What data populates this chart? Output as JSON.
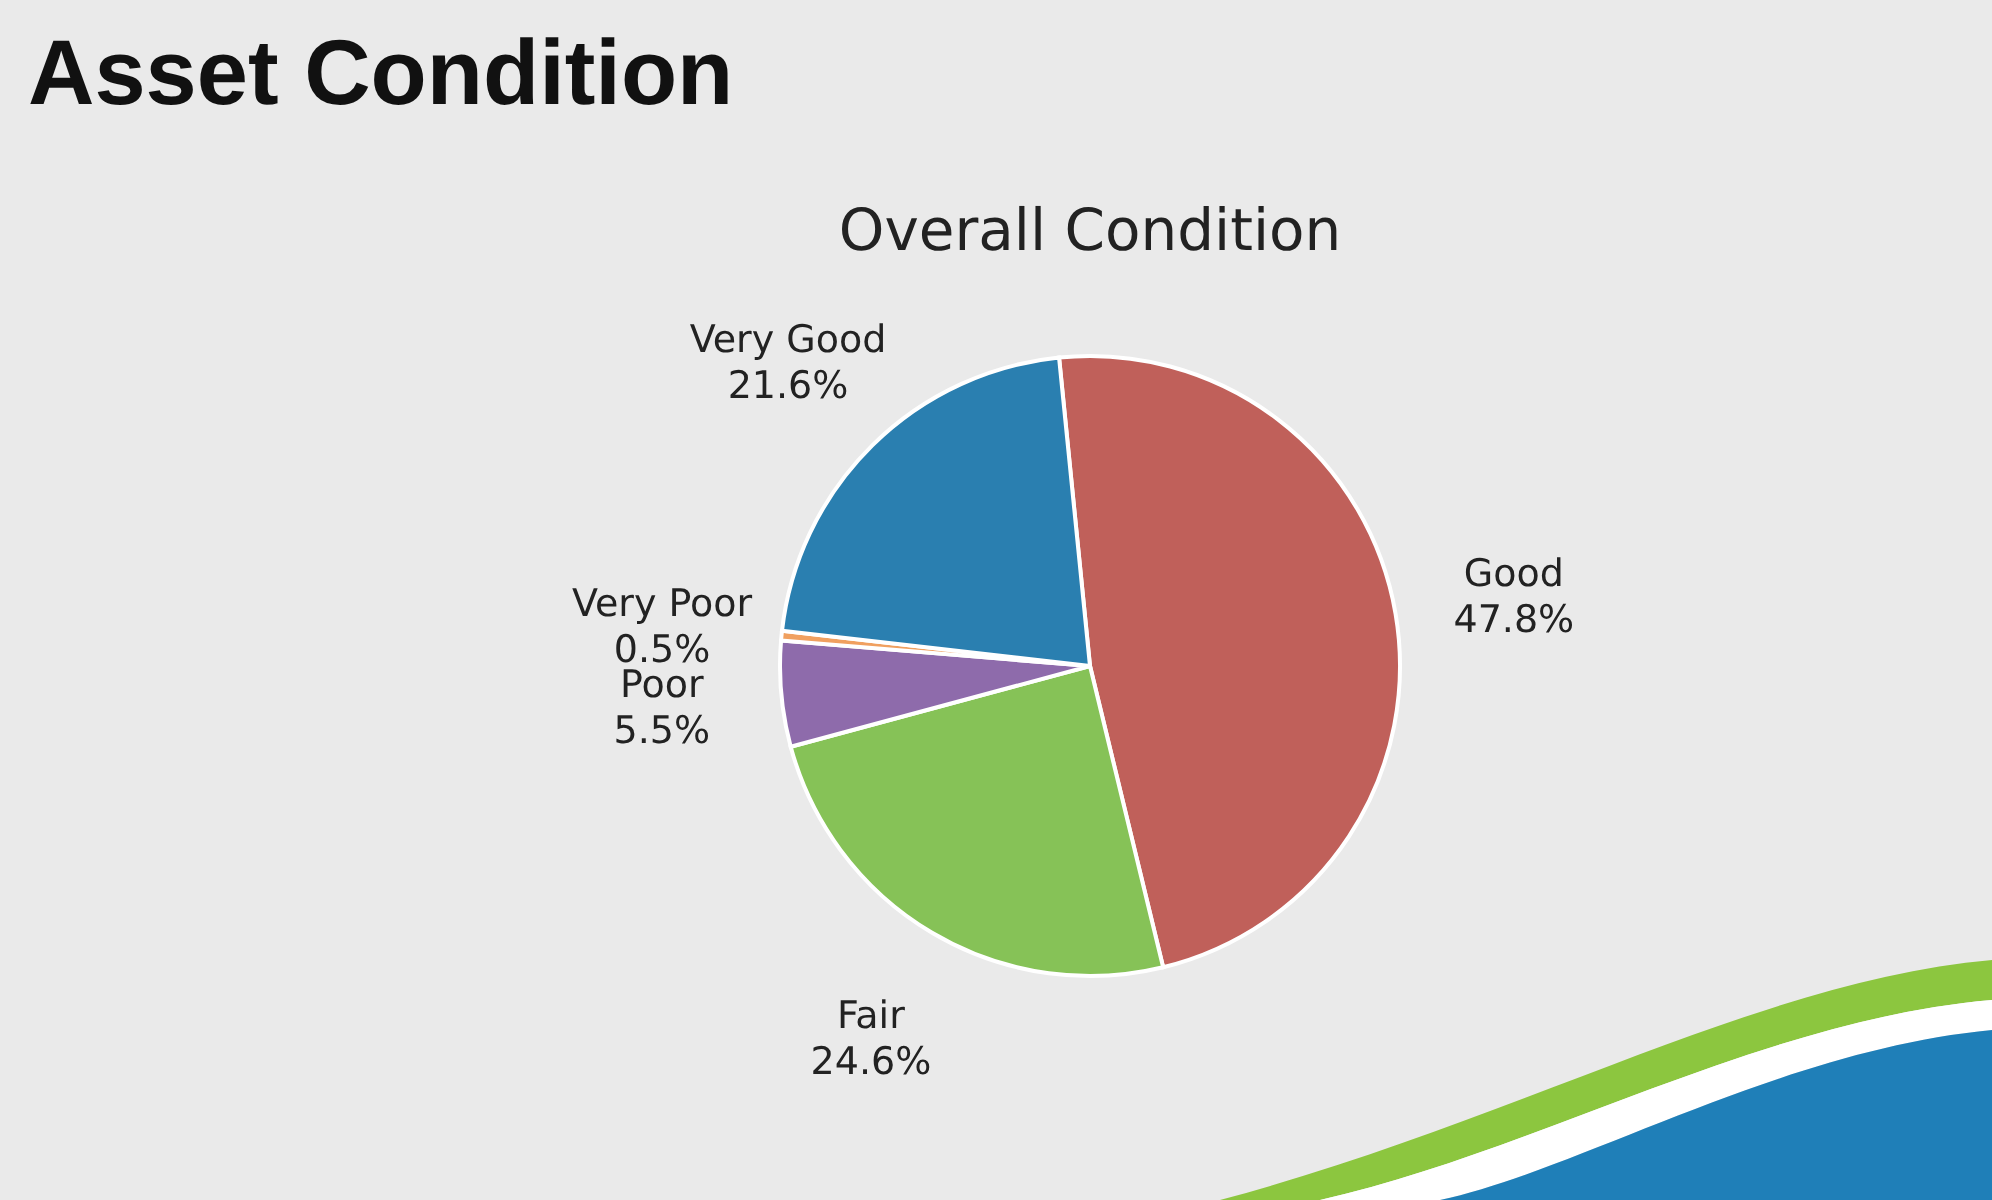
{
  "chart_data": {
    "type": "pie",
    "title": "Asset Condition",
    "subtitle": "Overall Condition",
    "categories": [
      "Good",
      "Fair",
      "Poor",
      "Very Poor",
      "Very Good"
    ],
    "values": [
      47.8,
      24.6,
      5.5,
      0.5,
      21.6
    ],
    "colors": [
      "#c0605a",
      "#86c257",
      "#8e6bab",
      "#f0a060",
      "#2a7fb0"
    ],
    "value_labels": [
      "47.8%",
      "24.6%",
      "5.5%",
      "0.5%",
      "21.6%"
    ]
  }
}
